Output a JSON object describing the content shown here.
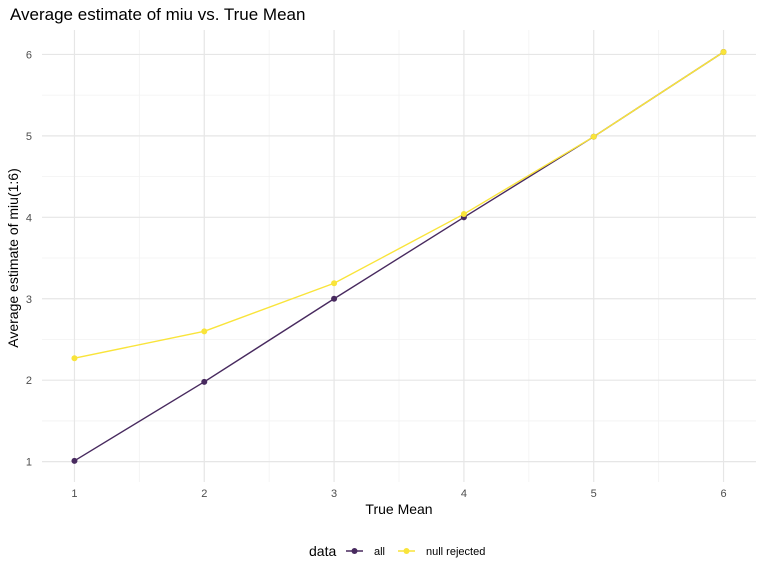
{
  "chart_data": {
    "type": "line",
    "title": "Average estimate of miu vs. True Mean",
    "xlabel": "True Mean",
    "ylabel": "Average estimate of miu(1:6)",
    "x": [
      1,
      2,
      3,
      4,
      5,
      6
    ],
    "x_ticks": [
      "1",
      "2",
      "3",
      "4",
      "5",
      "6"
    ],
    "y_ticks": [
      "1",
      "2",
      "3",
      "4",
      "5",
      "6"
    ],
    "xlim": [
      0.75,
      6.25
    ],
    "ylim": [
      0.75,
      6.3
    ],
    "grid": true,
    "legend": {
      "title": "data",
      "position": "bottom"
    },
    "series": [
      {
        "name": "all",
        "color": "#482a5f",
        "values": [
          1.01,
          1.98,
          3.0,
          4.0,
          4.99,
          6.03
        ]
      },
      {
        "name": "null rejected",
        "color": "#f9e43a",
        "values": [
          2.27,
          2.6,
          3.19,
          4.04,
          4.99,
          6.03
        ]
      }
    ]
  }
}
